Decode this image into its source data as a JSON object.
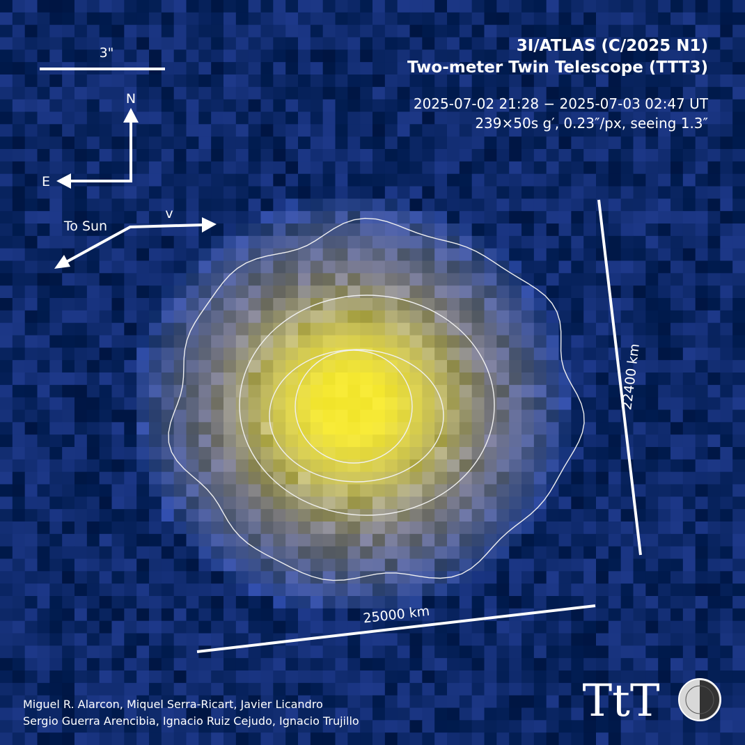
{
  "header": {
    "title": "3I/ATLAS (C/2025 N1)",
    "subtitle": "Two-meter Twin Telescope (TTT3)",
    "date_range": "2025-07-02 21:28 − 2025-07-03 02:47 UT",
    "exposure": "239×50s g′, 0.23″/px, seeing 1.3″"
  },
  "scale": {
    "arcsec_label": "3\"",
    "vertical_km": "22400 km",
    "horizontal_km": "25000 km"
  },
  "compass": {
    "north": "N",
    "east": "E"
  },
  "motion": {
    "sun": "To Sun",
    "velocity": "v"
  },
  "credits": [
    "Miguel R. Alarcon, Miquel Serra-Ricart, Javier Licandro",
    "Sergio Guerra Arencibia, Ignacio Ruiz Cejudo, Ignacio Trujillo"
  ],
  "logo": {
    "text": "TtT"
  }
}
